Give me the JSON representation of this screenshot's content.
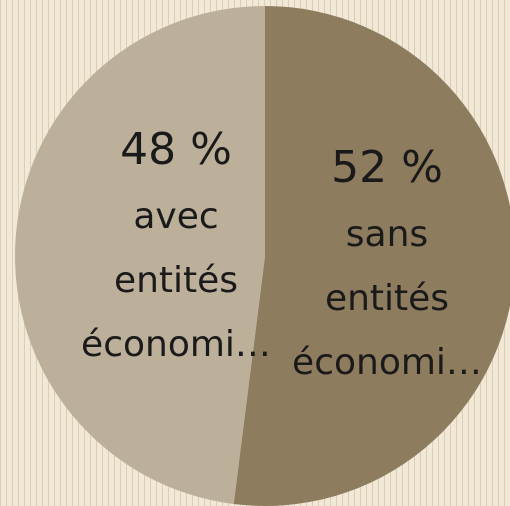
{
  "chart_data": {
    "type": "pie",
    "title": "",
    "start_angle": "top",
    "direction": "clockwise",
    "slices": [
      {
        "percent_label": "52 %",
        "label": "sans entités économi…",
        "label_lines": [
          "sans",
          "entités",
          "économi…"
        ],
        "value": 52,
        "color": "#8e7c5f"
      },
      {
        "percent_label": "48 %",
        "label": "avec entités économi…",
        "label_lines": [
          "avec",
          "entités",
          "économi…"
        ],
        "value": 48,
        "color": "#bdb09b"
      }
    ]
  }
}
